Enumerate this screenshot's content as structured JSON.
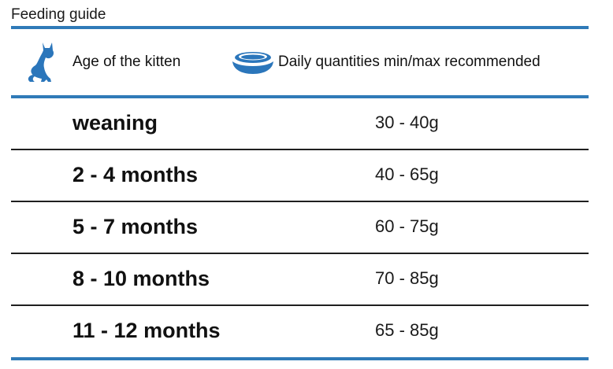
{
  "title": "Feeding guide",
  "colors": {
    "accent": "#2f7ab8",
    "icon": "#2b76bb",
    "divider": "#1f1f1f"
  },
  "header": {
    "age_icon": "cat-icon",
    "age_label": "Age of the kitten",
    "qty_icon": "food-bowl-icon",
    "qty_label": "Daily quantities min/max recommended"
  },
  "rows": [
    {
      "age": "weaning",
      "qty": "30 - 40g"
    },
    {
      "age": "2 - 4 months",
      "qty": "40 - 65g"
    },
    {
      "age": "5 - 7 months",
      "qty": "60 - 75g"
    },
    {
      "age": "8 - 10 months",
      "qty": "70 - 85g"
    },
    {
      "age": "11 - 12 months",
      "qty": "65 - 85g"
    }
  ]
}
